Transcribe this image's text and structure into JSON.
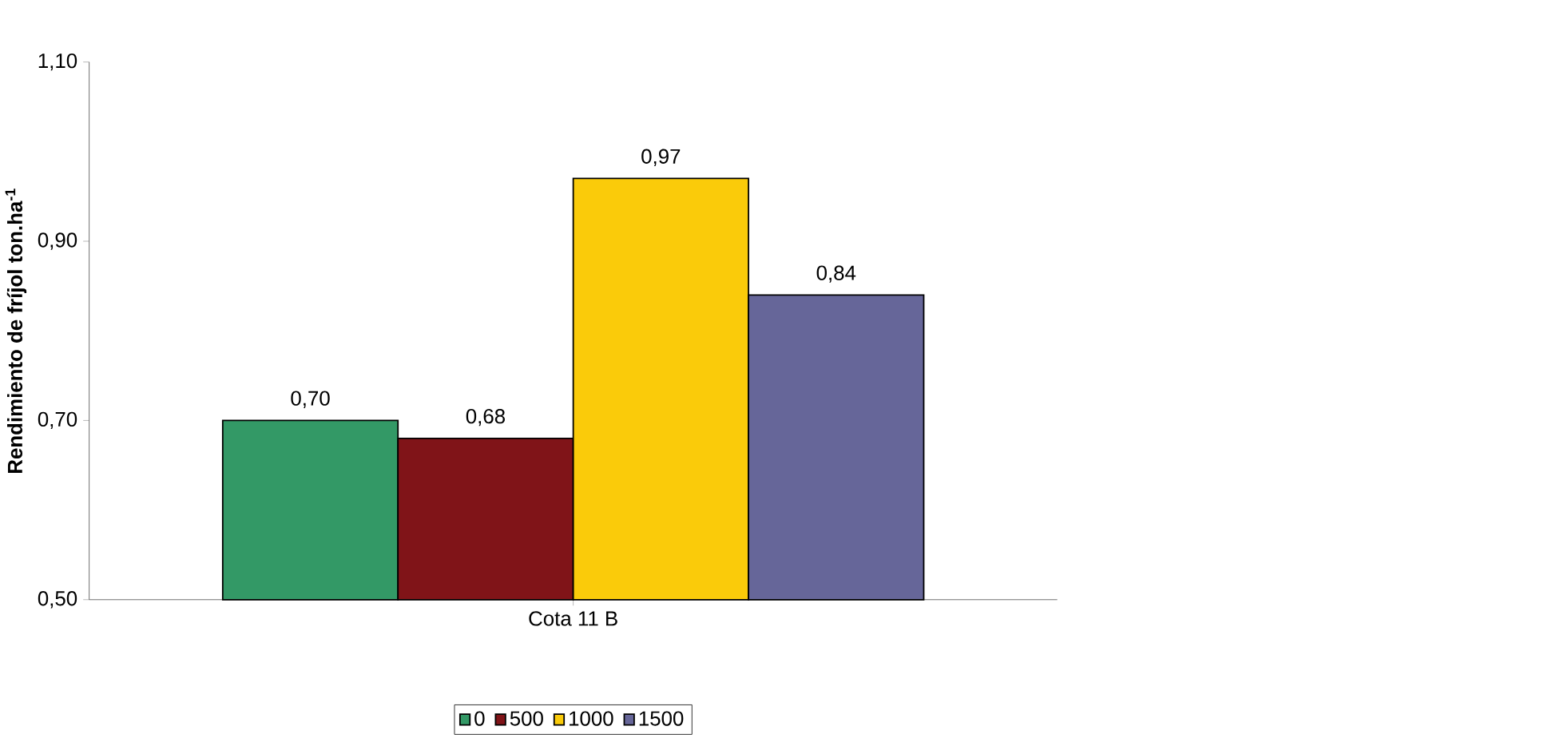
{
  "chart_data": {
    "type": "bar",
    "ylabel": "Rendimiento de fríjol ton.ha$^{-1}$",
    "categories": [
      "Cota 11 B"
    ],
    "series": [
      {
        "name": "0",
        "color": "#339966",
        "values": [
          0.7
        ],
        "value_labels": [
          "0,70"
        ]
      },
      {
        "name": "500",
        "color": "#801418",
        "values": [
          0.68
        ],
        "value_labels": [
          "0,68"
        ]
      },
      {
        "name": "1000",
        "color": "#facb0a",
        "values": [
          0.97
        ],
        "value_labels": [
          "0,97"
        ]
      },
      {
        "name": "1500",
        "color": "#666699",
        "values": [
          0.84
        ],
        "value_labels": [
          "0,84"
        ]
      }
    ],
    "ylim": [
      0.5,
      1.1
    ],
    "yticks": [
      {
        "value": 0.5,
        "label": "0,50"
      },
      {
        "value": 0.7,
        "label": "0,70"
      },
      {
        "value": 0.9,
        "label": "0,90"
      },
      {
        "value": 1.1,
        "label": "1,10"
      }
    ],
    "grid": false,
    "legend": "bottom"
  }
}
